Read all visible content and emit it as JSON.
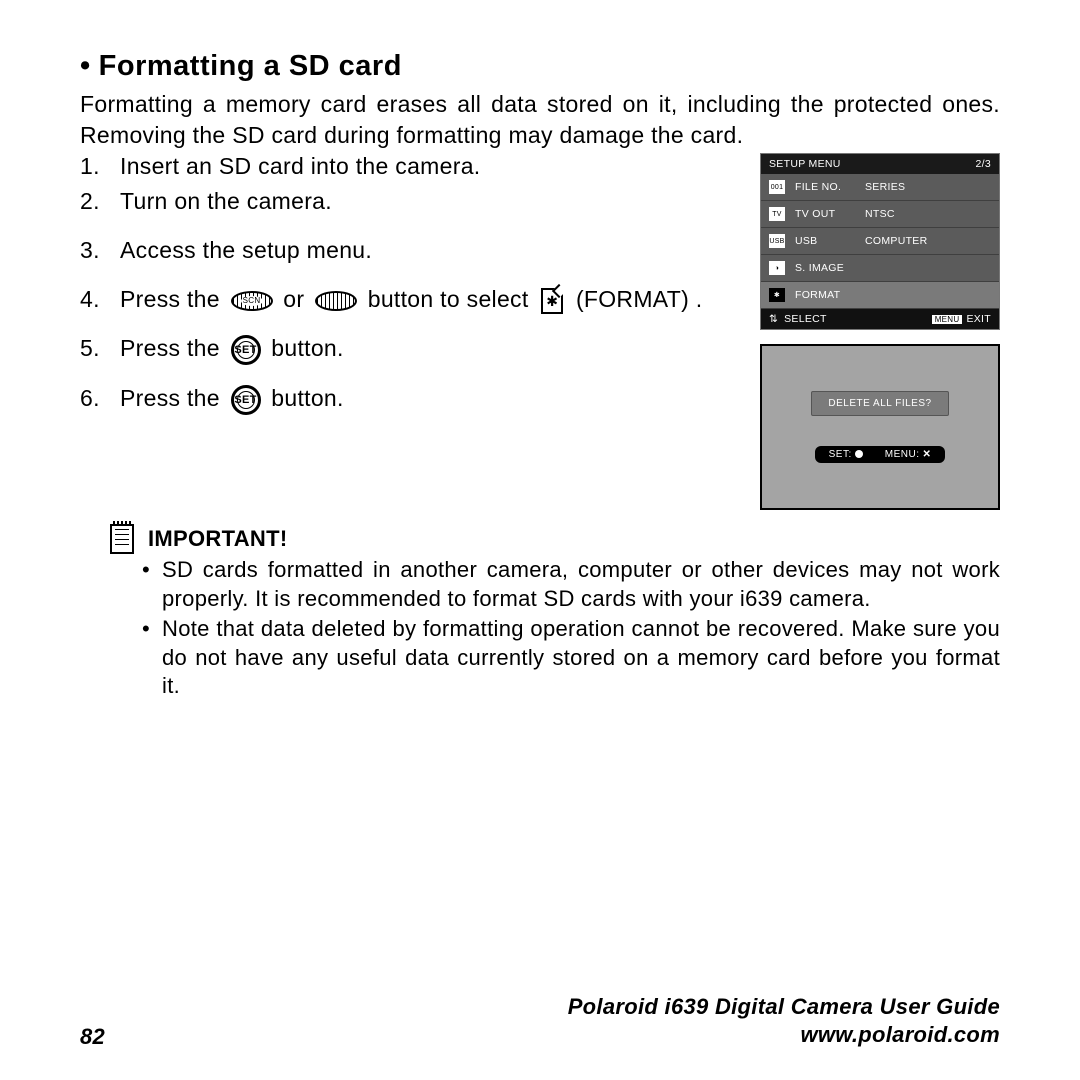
{
  "heading": "Formatting a SD card",
  "intro_line1": "Formatting a memory card erases all data stored on it, including the protected ones. Removing the SD card during formatting may damage the card.",
  "steps": {
    "s1": "Insert an SD card into the camera.",
    "s2": "Turn on the camera.",
    "s3": "Access the setup menu.",
    "s4a": "Press the",
    "s4b": "or",
    "s4c": "button to select",
    "s4d": "(FORMAT) .",
    "s5a": "Press the",
    "s5b": "button.",
    "s6a": "Press the",
    "s6b": "button."
  },
  "screen1": {
    "header_title": "SETUP MENU",
    "header_page": "2/3",
    "rows": [
      {
        "icon": "001",
        "label": "FILE NO.",
        "value": "SERIES"
      },
      {
        "icon": "TV",
        "label": "TV OUT",
        "value": "NTSC"
      },
      {
        "icon": "USB",
        "label": "USB",
        "value": "COMPUTER"
      },
      {
        "icon": "◑",
        "label": "S. IMAGE",
        "value": ""
      },
      {
        "icon": "✱",
        "label": "FORMAT",
        "value": "",
        "highlight": true
      }
    ],
    "footer_select": "SELECT",
    "footer_menu": "MENU",
    "footer_exit": "EXIT"
  },
  "screen2": {
    "dialog": "DELETE ALL FILES?",
    "left": "SET:",
    "right": "MENU:"
  },
  "important": {
    "title": "IMPORTANT!",
    "b1": "SD cards formatted in another camera, computer or other devices may not work properly. It is recommended to format SD cards with your i639 camera.",
    "b2": "Note that data deleted by formatting operation cannot be recovered. Make sure you do not have any useful data currently stored on a memory card before you format it."
  },
  "footer": {
    "page": "82",
    "guide": "Polaroid i639 Digital Camera User Guide",
    "url": "www.polaroid.com"
  },
  "set_label": "SET"
}
